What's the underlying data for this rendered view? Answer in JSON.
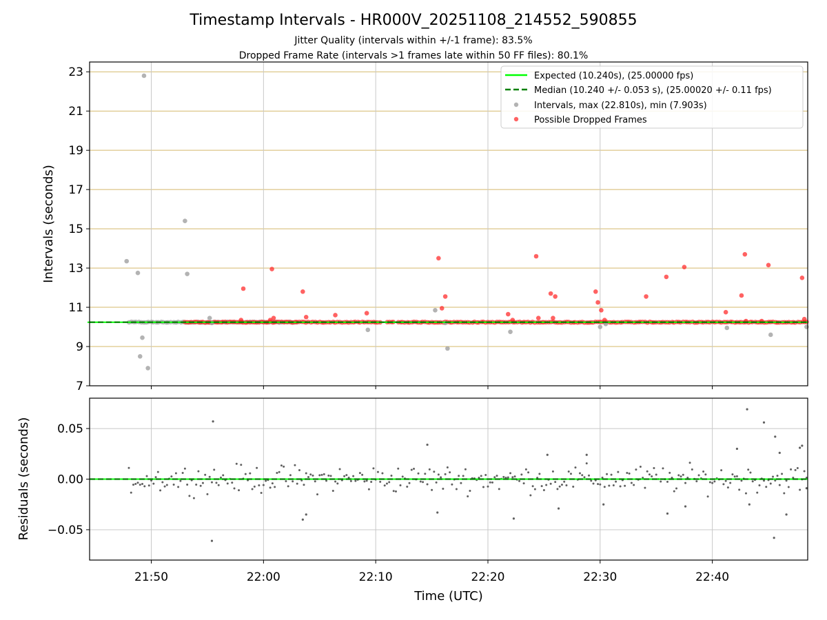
{
  "colors": {
    "expected": "#00ff00",
    "median": "#008000",
    "interval": "#a0a0a0",
    "dropped": "#ff2020",
    "residual": "#606060",
    "hgrid": "#d4b86a",
    "vgrid": "#c8c8c8"
  },
  "chart_data": [
    {
      "type": "scatter",
      "title": "Timestamp Intervals - HR000V_20251108_214552_590855",
      "subtitle_1": "Jitter Quality (intervals within +/-1 frame): 83.5%",
      "subtitle_2": "Dropped Frame Rate (intervals >1 frames late within 50 FF files): 80.1%",
      "xlabel": "",
      "ylabel": "Intervals (seconds)",
      "xlim_minutes": [
        1304.5,
        1368.5
      ],
      "ylim": [
        7,
        23.5
      ],
      "yticks": [
        7,
        9,
        11,
        13,
        15,
        17,
        19,
        21,
        23
      ],
      "ytick_labels": [
        "7",
        "9",
        "11",
        "13",
        "15",
        "17",
        "19",
        "21",
        "23"
      ],
      "grid": true,
      "legend_position": "top-right",
      "legend": {
        "expected": "Expected (10.240s), (25.00000 fps)",
        "median": "Median (10.240 +/- 0.053 s), (25.00020 +/- 0.11 fps)",
        "intervals": "Intervals, max (22.810s), min (7.903s)",
        "dropped": "Possible Dropped Frames"
      },
      "expected_value": 10.24,
      "median_value": 10.24,
      "baseline_from": 1308.0,
      "baseline_to": 1368.5,
      "gray_band": [
        1308.0,
        1323.0
      ],
      "red_band": [
        1313.0,
        1368.5
      ],
      "interval_outliers": [
        {
          "t": 1307.8,
          "v": 13.35
        },
        {
          "t": 1308.8,
          "v": 12.75
        },
        {
          "t": 1309.0,
          "v": 8.5
        },
        {
          "t": 1309.2,
          "v": 9.45
        },
        {
          "t": 1309.35,
          "v": 22.8
        },
        {
          "t": 1309.7,
          "v": 7.9
        },
        {
          "t": 1313.0,
          "v": 15.4
        },
        {
          "t": 1313.2,
          "v": 12.7
        },
        {
          "t": 1315.2,
          "v": 10.45
        },
        {
          "t": 1315.4,
          "v": 10.2
        },
        {
          "t": 1329.3,
          "v": 9.85
        },
        {
          "t": 1335.3,
          "v": 10.85
        },
        {
          "t": 1336.2,
          "v": 10.2
        },
        {
          "t": 1336.4,
          "v": 8.9
        },
        {
          "t": 1342.0,
          "v": 9.75
        },
        {
          "t": 1350.0,
          "v": 10.0
        },
        {
          "t": 1350.5,
          "v": 10.15
        },
        {
          "t": 1361.3,
          "v": 9.95
        },
        {
          "t": 1365.2,
          "v": 9.6
        },
        {
          "t": 1368.4,
          "v": 10.0
        }
      ],
      "dropped_frames": [
        {
          "t": 1318.0,
          "v": 10.35
        },
        {
          "t": 1318.2,
          "v": 11.95
        },
        {
          "t": 1320.6,
          "v": 10.35
        },
        {
          "t": 1320.75,
          "v": 12.95
        },
        {
          "t": 1320.9,
          "v": 10.45
        },
        {
          "t": 1323.5,
          "v": 11.8
        },
        {
          "t": 1323.8,
          "v": 10.5
        },
        {
          "t": 1326.4,
          "v": 10.6
        },
        {
          "t": 1329.2,
          "v": 10.7
        },
        {
          "t": 1335.6,
          "v": 13.5
        },
        {
          "t": 1335.9,
          "v": 10.95
        },
        {
          "t": 1336.2,
          "v": 11.55
        },
        {
          "t": 1341.8,
          "v": 10.65
        },
        {
          "t": 1342.2,
          "v": 10.35
        },
        {
          "t": 1344.3,
          "v": 13.6
        },
        {
          "t": 1344.5,
          "v": 10.45
        },
        {
          "t": 1345.6,
          "v": 11.7
        },
        {
          "t": 1345.8,
          "v": 10.45
        },
        {
          "t": 1346.0,
          "v": 11.55
        },
        {
          "t": 1349.6,
          "v": 11.8
        },
        {
          "t": 1349.8,
          "v": 11.25
        },
        {
          "t": 1350.1,
          "v": 10.85
        },
        {
          "t": 1350.4,
          "v": 10.35
        },
        {
          "t": 1354.1,
          "v": 11.55
        },
        {
          "t": 1355.9,
          "v": 12.55
        },
        {
          "t": 1357.5,
          "v": 13.05
        },
        {
          "t": 1361.2,
          "v": 10.75
        },
        {
          "t": 1362.6,
          "v": 11.6
        },
        {
          "t": 1362.9,
          "v": 13.7
        },
        {
          "t": 1363.0,
          "v": 10.3
        },
        {
          "t": 1364.4,
          "v": 10.3
        },
        {
          "t": 1365.0,
          "v": 13.15
        },
        {
          "t": 1368.0,
          "v": 12.5
        },
        {
          "t": 1368.2,
          "v": 10.4
        }
      ]
    },
    {
      "type": "scatter",
      "xlabel": "Time (UTC)",
      "ylabel": "Residuals (seconds)",
      "xlim_minutes": [
        1304.5,
        1368.5
      ],
      "ylim": [
        -0.08,
        0.08
      ],
      "yticks": [
        -0.05,
        0.0,
        0.05
      ],
      "ytick_labels": [
        "−0.05",
        "0.00",
        "0.05"
      ],
      "xticks_minutes": [
        1310,
        1320,
        1330,
        1340,
        1350,
        1360
      ],
      "xtick_labels": [
        "21:50",
        "22:00",
        "22:10",
        "22:20",
        "22:30",
        "22:40"
      ],
      "grid": true,
      "zero_line": 0.0,
      "residual_outliers": [
        {
          "t": 1315.5,
          "v": 0.057
        },
        {
          "t": 1315.4,
          "v": -0.061
        },
        {
          "t": 1323.5,
          "v": -0.04
        },
        {
          "t": 1323.8,
          "v": -0.035
        },
        {
          "t": 1334.6,
          "v": 0.034
        },
        {
          "t": 1335.5,
          "v": -0.033
        },
        {
          "t": 1342.3,
          "v": -0.039
        },
        {
          "t": 1345.3,
          "v": 0.024
        },
        {
          "t": 1346.3,
          "v": -0.029
        },
        {
          "t": 1348.8,
          "v": 0.024
        },
        {
          "t": 1350.3,
          "v": -0.025
        },
        {
          "t": 1356.0,
          "v": -0.034
        },
        {
          "t": 1357.6,
          "v": -0.027
        },
        {
          "t": 1362.2,
          "v": 0.03
        },
        {
          "t": 1363.1,
          "v": 0.069
        },
        {
          "t": 1363.3,
          "v": -0.025
        },
        {
          "t": 1364.6,
          "v": 0.056
        },
        {
          "t": 1365.6,
          "v": 0.042
        },
        {
          "t": 1365.5,
          "v": -0.058
        },
        {
          "t": 1366.0,
          "v": 0.026
        },
        {
          "t": 1366.6,
          "v": -0.035
        },
        {
          "t": 1367.8,
          "v": 0.031
        },
        {
          "t": 1368.0,
          "v": 0.033
        },
        {
          "t": 1368.4,
          "v": -0.009
        }
      ],
      "residual_spread": 0.012
    }
  ]
}
